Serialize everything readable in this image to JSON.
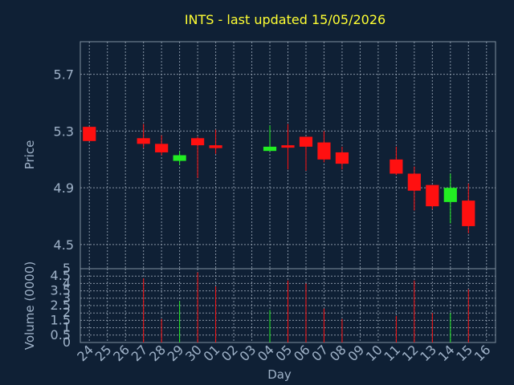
{
  "chart_data": {
    "type": "candlestick",
    "title": "INTS - last updated 15/05/2026",
    "xlabel": "Day",
    "price_panel": {
      "ylabel": "Price",
      "ylim": [
        4.33,
        5.93
      ],
      "yticks": [
        "4.5",
        "4.9",
        "5.3",
        "5.7"
      ],
      "ytick_values": [
        4.5,
        4.9,
        5.3,
        5.7
      ]
    },
    "volume_panel": {
      "ylabel": "Volume (0000)",
      "ylim": [
        0,
        5
      ],
      "yticks": [
        "0",
        "0.5",
        "1",
        "1.5",
        "2",
        "2.5",
        "3",
        "3.5",
        "4",
        "4.5",
        "5"
      ],
      "ytick_values": [
        0,
        0.5,
        1,
        1.5,
        2,
        2.5,
        3,
        3.5,
        4,
        4.5,
        5
      ]
    },
    "x_tick_labels": [
      "24",
      "25",
      "26",
      "27",
      "28",
      "29",
      "30",
      "01",
      "02",
      "03",
      "04",
      "05",
      "06",
      "07",
      "08",
      "09",
      "10",
      "11",
      "12",
      "13",
      "14",
      "15",
      "16"
    ],
    "candles": [
      {
        "x": "24",
        "open": 5.33,
        "close": 5.23,
        "high": 5.33,
        "low": 5.23,
        "volume": 0,
        "direction": "down"
      },
      {
        "x": "27",
        "open": 5.25,
        "close": 5.21,
        "high": 5.35,
        "low": 5.18,
        "volume": 4.35,
        "direction": "down"
      },
      {
        "x": "28",
        "open": 5.21,
        "close": 5.15,
        "high": 5.27,
        "low": 5.13,
        "volume": 1.6,
        "direction": "down"
      },
      {
        "x": "29",
        "open": 5.09,
        "close": 5.13,
        "high": 5.16,
        "low": 5.06,
        "volume": 2.8,
        "direction": "up"
      },
      {
        "x": "30",
        "open": 5.25,
        "close": 5.2,
        "high": 5.26,
        "low": 4.97,
        "volume": 4.75,
        "direction": "down"
      },
      {
        "x": "01",
        "open": 5.2,
        "close": 5.18,
        "high": 5.31,
        "low": 5.14,
        "volume": 3.8,
        "direction": "down"
      },
      {
        "x": "04",
        "open": 5.16,
        "close": 5.19,
        "high": 5.34,
        "low": 5.16,
        "volume": 2.2,
        "direction": "up"
      },
      {
        "x": "05",
        "open": 5.2,
        "close": 5.19,
        "high": 5.35,
        "low": 5.03,
        "volume": 4.2,
        "direction": "down"
      },
      {
        "x": "06",
        "open": 5.26,
        "close": 5.19,
        "high": 5.26,
        "low": 5.02,
        "volume": 4.0,
        "direction": "down"
      },
      {
        "x": "07",
        "open": 5.22,
        "close": 5.1,
        "high": 5.3,
        "low": 5.08,
        "volume": 2.3,
        "direction": "down"
      },
      {
        "x": "08",
        "open": 5.15,
        "close": 5.07,
        "high": 5.19,
        "low": 5.03,
        "volume": 1.6,
        "direction": "down"
      },
      {
        "x": "11",
        "open": 5.1,
        "close": 5.0,
        "high": 5.19,
        "low": 4.99,
        "volume": 1.8,
        "direction": "down"
      },
      {
        "x": "12",
        "open": 5.0,
        "close": 4.88,
        "high": 5.05,
        "low": 4.74,
        "volume": 4.2,
        "direction": "down"
      },
      {
        "x": "13",
        "open": 4.92,
        "close": 4.77,
        "high": 4.92,
        "low": 4.75,
        "volume": 2.0,
        "direction": "down"
      },
      {
        "x": "14",
        "open": 4.8,
        "close": 4.9,
        "high": 5.0,
        "low": 4.65,
        "volume": 2.0,
        "direction": "up"
      },
      {
        "x": "15",
        "open": 4.81,
        "close": 4.63,
        "high": 4.93,
        "low": 4.58,
        "volume": 3.6,
        "direction": "down"
      }
    ],
    "colors": {
      "up": "#22ee22",
      "down": "#ff1010",
      "title": "#ffff33",
      "background": "#0f2035",
      "axis_text": "#9fb2c8"
    },
    "grid": true
  }
}
